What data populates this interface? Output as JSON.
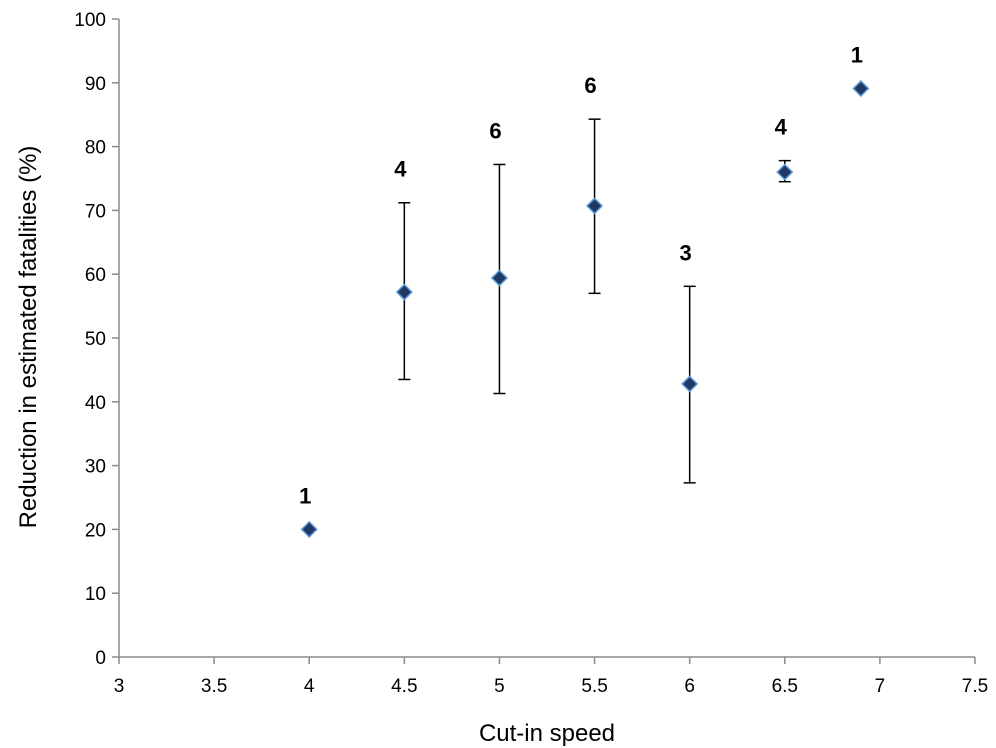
{
  "chart_data": {
    "type": "scatter",
    "title": "",
    "xlabel": "Cut-in speed",
    "ylabel": "Reduction in estimated fatalities (%)",
    "xlim": [
      3,
      7.5
    ],
    "ylim": [
      0,
      100
    ],
    "x_ticks": [
      "3",
      "3.5",
      "4",
      "4.5",
      "5",
      "5.5",
      "6",
      "6.5",
      "7",
      "7.5"
    ],
    "y_ticks": [
      "0",
      "10",
      "20",
      "30",
      "40",
      "50",
      "60",
      "70",
      "80",
      "90",
      "100"
    ],
    "grid": false,
    "legend": "none",
    "marker": "diamond",
    "marker_color": "#1F3864",
    "marker_edge_color": "#5B9BD5",
    "series": [
      {
        "points": [
          {
            "x": 4.0,
            "y": 20.0,
            "err_low": null,
            "err_high": null,
            "n": "1"
          },
          {
            "x": 4.5,
            "y": 57.2,
            "err_low": 43.5,
            "err_high": 71.2,
            "n": "4"
          },
          {
            "x": 5.0,
            "y": 59.4,
            "err_low": 41.3,
            "err_high": 77.2,
            "n": "6"
          },
          {
            "x": 5.5,
            "y": 70.7,
            "err_low": 57.0,
            "err_high": 84.3,
            "n": "6"
          },
          {
            "x": 6.0,
            "y": 42.8,
            "err_low": 27.3,
            "err_high": 58.1,
            "n": "3"
          },
          {
            "x": 6.5,
            "y": 76.0,
            "err_low": 74.5,
            "err_high": 77.8,
            "n": "4"
          },
          {
            "x": 6.9,
            "y": 89.1,
            "err_low": null,
            "err_high": null,
            "n": "1"
          }
        ]
      }
    ]
  }
}
